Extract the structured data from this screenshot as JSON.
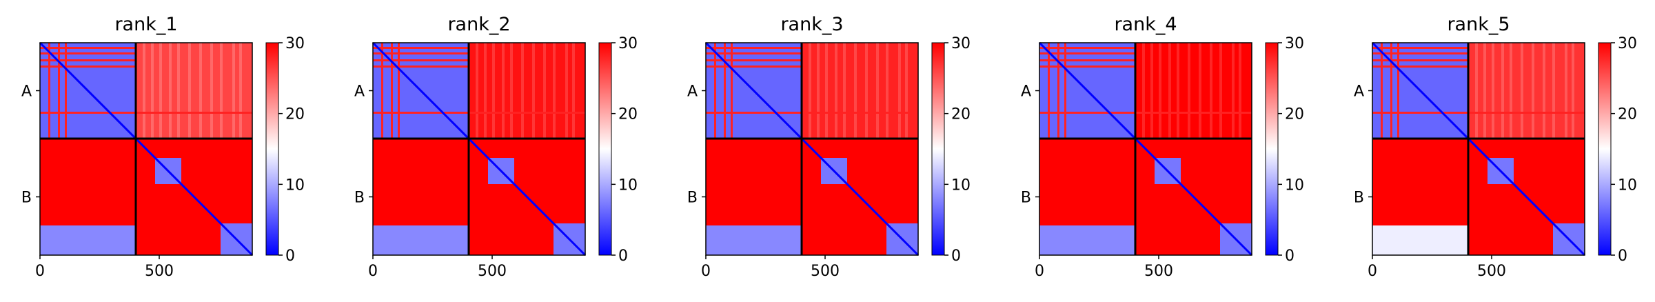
{
  "figure_type": "PAE heatmaps (predicted aligned error) for five ranked models",
  "chart_data": [
    {
      "type": "heatmap",
      "title": "rank_1",
      "chains": [
        "A",
        "B"
      ],
      "x_ticks": [
        "0",
        "500"
      ],
      "colorbar_ticks": [
        "0",
        "10",
        "20",
        "30"
      ],
      "zlim": [
        0,
        30
      ],
      "pae_levels": {
        "a_diag": 6,
        "a_stripes": 28,
        "a_to_b": 26,
        "b_to_a": 30,
        "b_diag": 7,
        "b_blue": 8
      }
    },
    {
      "type": "heatmap",
      "title": "rank_2",
      "chains": [
        "A",
        "B"
      ],
      "x_ticks": [
        "0",
        "500"
      ],
      "colorbar_ticks": [
        "0",
        "10",
        "20",
        "30"
      ],
      "zlim": [
        0,
        30
      ],
      "pae_levels": {
        "a_diag": 6,
        "a_stripes": 28,
        "a_to_b": 29,
        "b_to_a": 30,
        "b_diag": 7,
        "b_blue": 8
      }
    },
    {
      "type": "heatmap",
      "title": "rank_3",
      "chains": [
        "A",
        "B"
      ],
      "x_ticks": [
        "0",
        "500"
      ],
      "colorbar_ticks": [
        "0",
        "10",
        "20",
        "30"
      ],
      "zlim": [
        0,
        30
      ],
      "pae_levels": {
        "a_diag": 6,
        "a_stripes": 28,
        "a_to_b": 28,
        "b_to_a": 30,
        "b_diag": 7,
        "b_blue": 8
      }
    },
    {
      "type": "heatmap",
      "title": "rank_4",
      "chains": [
        "A",
        "B"
      ],
      "x_ticks": [
        "0",
        "500"
      ],
      "colorbar_ticks": [
        "0",
        "10",
        "20",
        "30"
      ],
      "zlim": [
        0,
        30
      ],
      "pae_levels": {
        "a_diag": 6,
        "a_stripes": 28,
        "a_to_b": 30,
        "b_to_a": 30,
        "b_diag": 7,
        "b_blue": 8
      }
    },
    {
      "type": "heatmap",
      "title": "rank_5",
      "chains": [
        "A",
        "B"
      ],
      "x_ticks": [
        "0",
        "500"
      ],
      "colorbar_ticks": [
        "0",
        "10",
        "20",
        "30"
      ],
      "zlim": [
        0,
        30
      ],
      "pae_levels": {
        "a_diag": 6,
        "a_stripes": 28,
        "a_to_b": 27,
        "b_to_a": 30,
        "b_diag": 7,
        "b_blue": 14
      }
    }
  ],
  "colormap": {
    "low": "#0000ff",
    "mid": "#ffffff",
    "high": "#ff0000"
  },
  "divider_color": "#000000"
}
